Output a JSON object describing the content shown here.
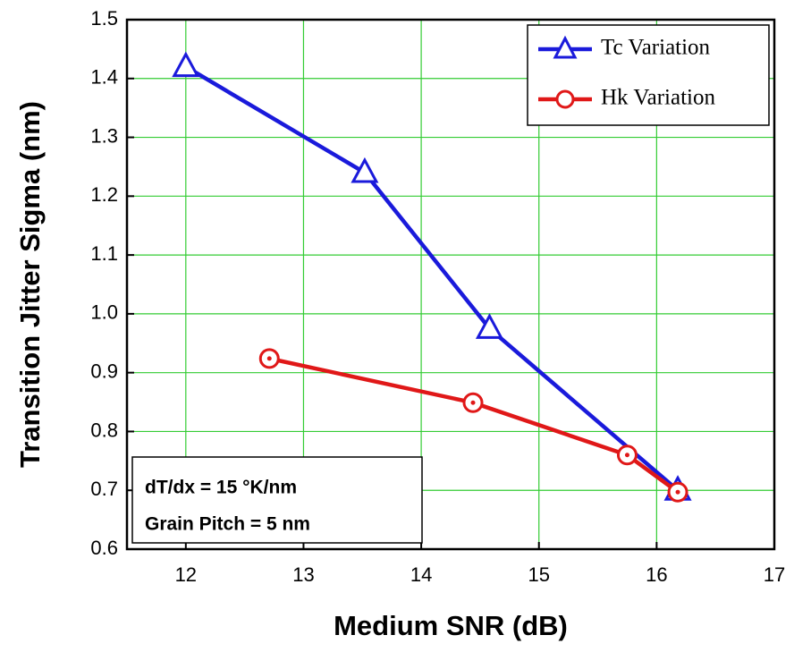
{
  "chart_data": {
    "type": "line",
    "x_label": "Medium SNR (dB)",
    "y_label": "Transition Jitter Sigma (nm)",
    "xlim": [
      11.5,
      17
    ],
    "xticks": [
      12,
      13,
      14,
      15,
      16,
      17
    ],
    "ylim": [
      0.6,
      1.5
    ],
    "yticks": [
      {
        "value": 0.6,
        "label": "0.6"
      },
      {
        "value": 0.7,
        "label": "0.7"
      },
      {
        "value": 0.8,
        "label": "0.8"
      },
      {
        "value": 0.9,
        "label": "0.9"
      },
      {
        "value": 1.0,
        "label": "1.0"
      },
      {
        "value": 1.1,
        "label": "1.1"
      },
      {
        "value": 1.2,
        "label": "1.2"
      },
      {
        "value": 1.3,
        "label": "1.3"
      },
      {
        "value": 1.4,
        "label": "1.4"
      },
      {
        "value": 1.5,
        "label": "1.5"
      }
    ],
    "grid": true,
    "grid_color": "#33cc33",
    "legend": "upper right",
    "annotations": [
      "dT/dx = 15 °K/nm",
      "Grain Pitch = 5 nm"
    ],
    "series": [
      {
        "name": "Tc Variation",
        "color": "#1a1adb",
        "marker": "triangle",
        "x": [
          12.0,
          13.52,
          14.58,
          16.18
        ],
        "values": [
          1.42,
          1.24,
          0.975,
          0.7
        ]
      },
      {
        "name": "Hk Variation",
        "color": "#e01818",
        "marker": "circle",
        "x": [
          12.71,
          14.44,
          15.75,
          16.18
        ],
        "values": [
          0.924,
          0.849,
          0.76,
          0.697
        ]
      }
    ]
  }
}
